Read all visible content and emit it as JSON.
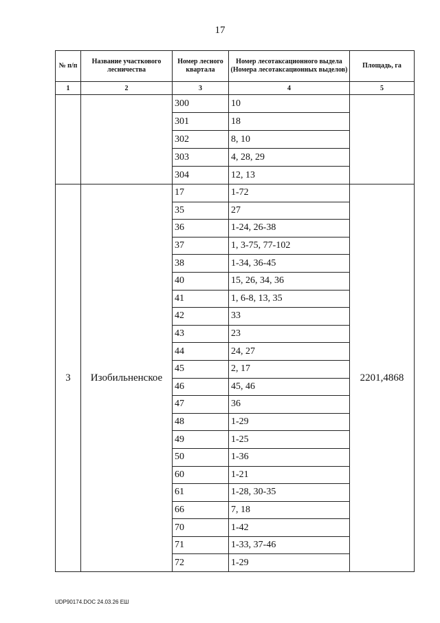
{
  "page_number": "17",
  "headers": [
    "№ п/п",
    "Название участкового лесничества",
    "Номер лесного квартала",
    "Номер лесотаксационного выдела (Номера лесотаксационных выделов)",
    "Площадь, га"
  ],
  "column_numbers": [
    "1",
    "2",
    "3",
    "4",
    "5"
  ],
  "group1": {
    "rows": [
      {
        "q": "300",
        "v": "10"
      },
      {
        "q": "301",
        "v": "18"
      },
      {
        "q": "302",
        "v": "8, 10"
      },
      {
        "q": "303",
        "v": "4, 28, 29"
      },
      {
        "q": "304",
        "v": "12, 13"
      }
    ]
  },
  "group2": {
    "num": "3",
    "name": "Изобильненское",
    "area": "2201,4868",
    "rows": [
      {
        "q": "17",
        "v": "1-72"
      },
      {
        "q": "35",
        "v": "27"
      },
      {
        "q": "36",
        "v": "1-24, 26-38"
      },
      {
        "q": "37",
        "v": "1, 3-75, 77-102"
      },
      {
        "q": "38",
        "v": "1-34, 36-45"
      },
      {
        "q": "40",
        "v": "15, 26, 34, 36"
      },
      {
        "q": "41",
        "v": "1, 6-8, 13, 35"
      },
      {
        "q": "42",
        "v": "33"
      },
      {
        "q": "43",
        "v": "23"
      },
      {
        "q": "44",
        "v": "24, 27"
      },
      {
        "q": "45",
        "v": "2, 17"
      },
      {
        "q": "46",
        "v": "45, 46"
      },
      {
        "q": "47",
        "v": "36"
      },
      {
        "q": "48",
        "v": "1-29"
      },
      {
        "q": "49",
        "v": "1-25"
      },
      {
        "q": "50",
        "v": "1-36"
      },
      {
        "q": "60",
        "v": "1-21"
      },
      {
        "q": "61",
        "v": "1-28, 30-35"
      },
      {
        "q": "66",
        "v": "7, 18"
      },
      {
        "q": "70",
        "v": "1-42"
      },
      {
        "q": "71",
        "v": "1-33, 37-46"
      },
      {
        "q": "72",
        "v": "1-29"
      }
    ]
  },
  "footer": "UDP90174.DOC   24.03.26  ЕШ"
}
